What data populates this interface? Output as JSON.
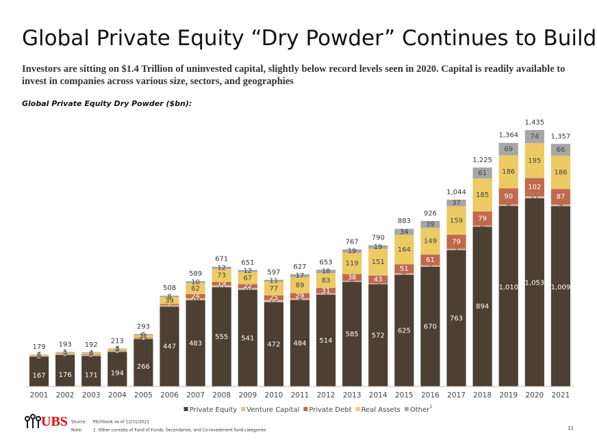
{
  "header": {
    "title": "Global Private Equity “Dry Powder” Continues to Build",
    "subtitle": "Investors are sitting on $1.4 Trillion of uninvested capital, slightly below record levels seen in 2020.  Capital is readily available to invest in companies across various size, sectors, and geographies"
  },
  "chart_data": {
    "type": "bar",
    "stacked": true,
    "title": "Global Private Equity Dry Powder ($bn):",
    "categories": [
      "2001",
      "2002",
      "2003",
      "2004",
      "2005",
      "2006",
      "2007",
      "2008",
      "2009",
      "2010",
      "2011",
      "2012",
      "2013",
      "2014",
      "2015",
      "2016",
      "2017",
      "2018",
      "2019",
      "2020",
      "2021"
    ],
    "ylim": [
      0,
      1500
    ],
    "series": [
      {
        "name": "Private Equity",
        "color": "#4e3f33",
        "values": [
          167,
          176,
          171,
          194,
          266,
          447,
          483,
          555,
          541,
          472,
          484,
          514,
          585,
          572,
          625,
          670,
          763,
          894,
          1010,
          1053,
          1009
        ],
        "value_labels": [
          "167",
          "176",
          "171",
          "194",
          "266",
          "447",
          "483",
          "555",
          "541",
          "472",
          "484",
          "514",
          "585",
          "572",
          "625",
          "670",
          "763",
          "894",
          "1,010",
          "1,053",
          "1,009"
        ]
      },
      {
        "name": "Venture Capital",
        "color": "#d8bea1",
        "values": [
          2,
          5,
          6,
          5,
          6,
          7,
          10,
          11,
          10,
          12,
          9,
          7,
          6,
          5,
          8,
          7,
          7,
          6,
          8,
          11,
          9
        ]
      },
      {
        "name": "Private Debt",
        "color": "#c0694e",
        "values": [
          2,
          3,
          3,
          3,
          3,
          7,
          24,
          19,
          22,
          25,
          29,
          31,
          38,
          43,
          51,
          61,
          79,
          79,
          90,
          102,
          87
        ]
      },
      {
        "name": "Real Assets",
        "color": "#ecca64",
        "values": [
          6,
          4,
          8,
          8,
          12,
          39,
          62,
          73,
          67,
          77,
          89,
          83,
          119,
          151,
          164,
          149,
          159,
          185,
          186,
          195,
          186
        ]
      },
      {
        "name": "Other",
        "color": "#a6a6a6",
        "values": [
          2,
          5,
          4,
          3,
          6,
          8,
          10,
          12,
          12,
          11,
          17,
          18,
          19,
          19,
          34,
          39,
          37,
          61,
          69,
          74,
          66
        ]
      }
    ],
    "totals": [
      179,
      193,
      192,
      213,
      293,
      508,
      589,
      671,
      651,
      597,
      627,
      653,
      767,
      790,
      883,
      926,
      1044,
      1225,
      1364,
      1435,
      1357
    ],
    "total_labels": [
      "179",
      "193",
      "192",
      "213",
      "293",
      "508",
      "589",
      "671",
      "651",
      "597",
      "627",
      "653",
      "767",
      "790",
      "883",
      "926",
      "1,044",
      "1,225",
      "1,364",
      "1,435",
      "1,357"
    ],
    "legend_footnote": "1"
  },
  "footer": {
    "logo": "UBS",
    "source_label": "Source:",
    "source": "Pitchbook as of 12/31/2021",
    "note_label": "Note:",
    "note": "1. Other consists of Fund of Funds, Secondaries, and Co-investment fund categories",
    "page": "11"
  }
}
